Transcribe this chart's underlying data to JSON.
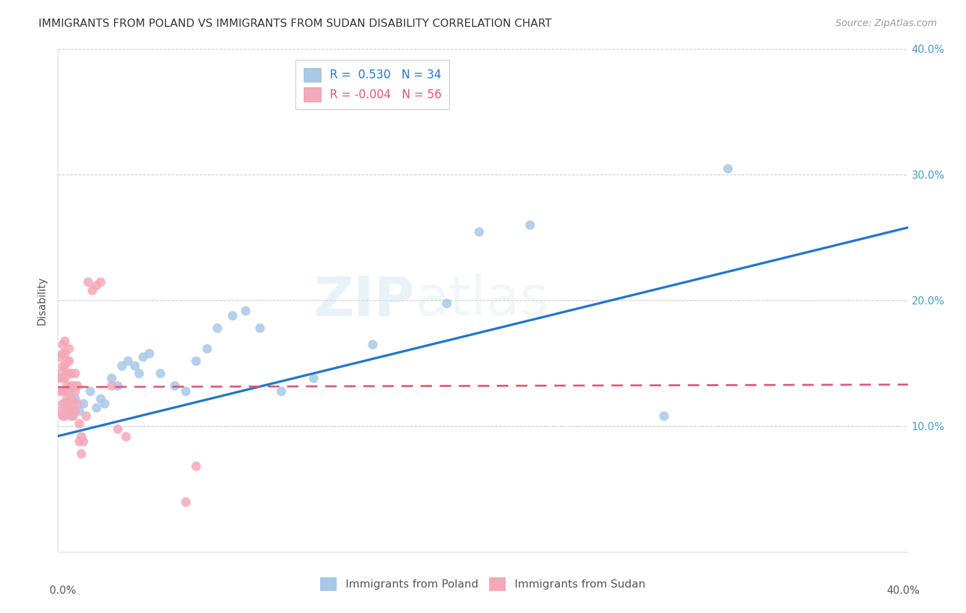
{
  "title": "IMMIGRANTS FROM POLAND VS IMMIGRANTS FROM SUDAN DISABILITY CORRELATION CHART",
  "source": "Source: ZipAtlas.com",
  "ylabel": "Disability",
  "xlim": [
    0.0,
    0.4
  ],
  "ylim": [
    0.0,
    0.4
  ],
  "xtick_values": [
    0.0,
    0.1,
    0.2,
    0.3,
    0.4
  ],
  "ytick_labels": [
    "10.0%",
    "20.0%",
    "30.0%",
    "40.0%"
  ],
  "ytick_values": [
    0.1,
    0.2,
    0.3,
    0.4
  ],
  "poland_color": "#a8c8e8",
  "sudan_color": "#f4a8b8",
  "poland_line_color": "#2277cc",
  "sudan_line_color": "#e05575",
  "poland_R": 0.53,
  "poland_N": 34,
  "sudan_R": -0.004,
  "sudan_N": 56,
  "background_color": "#ffffff",
  "grid_color": "#cccccc",
  "poland_scatter": [
    [
      0.004,
      0.115
    ],
    [
      0.006,
      0.108
    ],
    [
      0.008,
      0.122
    ],
    [
      0.01,
      0.112
    ],
    [
      0.012,
      0.118
    ],
    [
      0.015,
      0.128
    ],
    [
      0.018,
      0.115
    ],
    [
      0.02,
      0.122
    ],
    [
      0.022,
      0.118
    ],
    [
      0.025,
      0.138
    ],
    [
      0.028,
      0.132
    ],
    [
      0.03,
      0.148
    ],
    [
      0.033,
      0.152
    ],
    [
      0.036,
      0.148
    ],
    [
      0.038,
      0.142
    ],
    [
      0.04,
      0.155
    ],
    [
      0.043,
      0.158
    ],
    [
      0.048,
      0.142
    ],
    [
      0.055,
      0.132
    ],
    [
      0.06,
      0.128
    ],
    [
      0.065,
      0.152
    ],
    [
      0.07,
      0.162
    ],
    [
      0.075,
      0.178
    ],
    [
      0.082,
      0.188
    ],
    [
      0.088,
      0.192
    ],
    [
      0.095,
      0.178
    ],
    [
      0.105,
      0.128
    ],
    [
      0.12,
      0.138
    ],
    [
      0.148,
      0.165
    ],
    [
      0.183,
      0.198
    ],
    [
      0.198,
      0.255
    ],
    [
      0.222,
      0.26
    ],
    [
      0.285,
      0.108
    ],
    [
      0.315,
      0.305
    ]
  ],
  "sudan_scatter": [
    [
      0.0,
      0.138
    ],
    [
      0.001,
      0.112
    ],
    [
      0.001,
      0.128
    ],
    [
      0.001,
      0.142
    ],
    [
      0.001,
      0.155
    ],
    [
      0.002,
      0.108
    ],
    [
      0.002,
      0.118
    ],
    [
      0.002,
      0.128
    ],
    [
      0.002,
      0.138
    ],
    [
      0.002,
      0.148
    ],
    [
      0.002,
      0.158
    ],
    [
      0.002,
      0.165
    ],
    [
      0.003,
      0.108
    ],
    [
      0.003,
      0.118
    ],
    [
      0.003,
      0.128
    ],
    [
      0.003,
      0.138
    ],
    [
      0.003,
      0.148
    ],
    [
      0.003,
      0.158
    ],
    [
      0.003,
      0.168
    ],
    [
      0.004,
      0.112
    ],
    [
      0.004,
      0.122
    ],
    [
      0.004,
      0.132
    ],
    [
      0.004,
      0.142
    ],
    [
      0.004,
      0.152
    ],
    [
      0.005,
      0.118
    ],
    [
      0.005,
      0.128
    ],
    [
      0.005,
      0.142
    ],
    [
      0.005,
      0.152
    ],
    [
      0.005,
      0.162
    ],
    [
      0.006,
      0.112
    ],
    [
      0.006,
      0.122
    ],
    [
      0.006,
      0.132
    ],
    [
      0.006,
      0.142
    ],
    [
      0.007,
      0.108
    ],
    [
      0.007,
      0.118
    ],
    [
      0.007,
      0.132
    ],
    [
      0.008,
      0.112
    ],
    [
      0.008,
      0.128
    ],
    [
      0.008,
      0.142
    ],
    [
      0.009,
      0.118
    ],
    [
      0.009,
      0.132
    ],
    [
      0.01,
      0.088
    ],
    [
      0.01,
      0.102
    ],
    [
      0.011,
      0.078
    ],
    [
      0.011,
      0.092
    ],
    [
      0.012,
      0.088
    ],
    [
      0.013,
      0.108
    ],
    [
      0.014,
      0.215
    ],
    [
      0.016,
      0.208
    ],
    [
      0.018,
      0.212
    ],
    [
      0.02,
      0.215
    ],
    [
      0.025,
      0.132
    ],
    [
      0.028,
      0.098
    ],
    [
      0.032,
      0.092
    ],
    [
      0.06,
      0.04
    ],
    [
      0.065,
      0.068
    ]
  ],
  "poland_line_x": [
    0.0,
    0.4
  ],
  "poland_line_y": [
    0.092,
    0.258
  ],
  "sudan_line_x": [
    0.0,
    0.4
  ],
  "sudan_line_y": [
    0.131,
    0.133
  ]
}
